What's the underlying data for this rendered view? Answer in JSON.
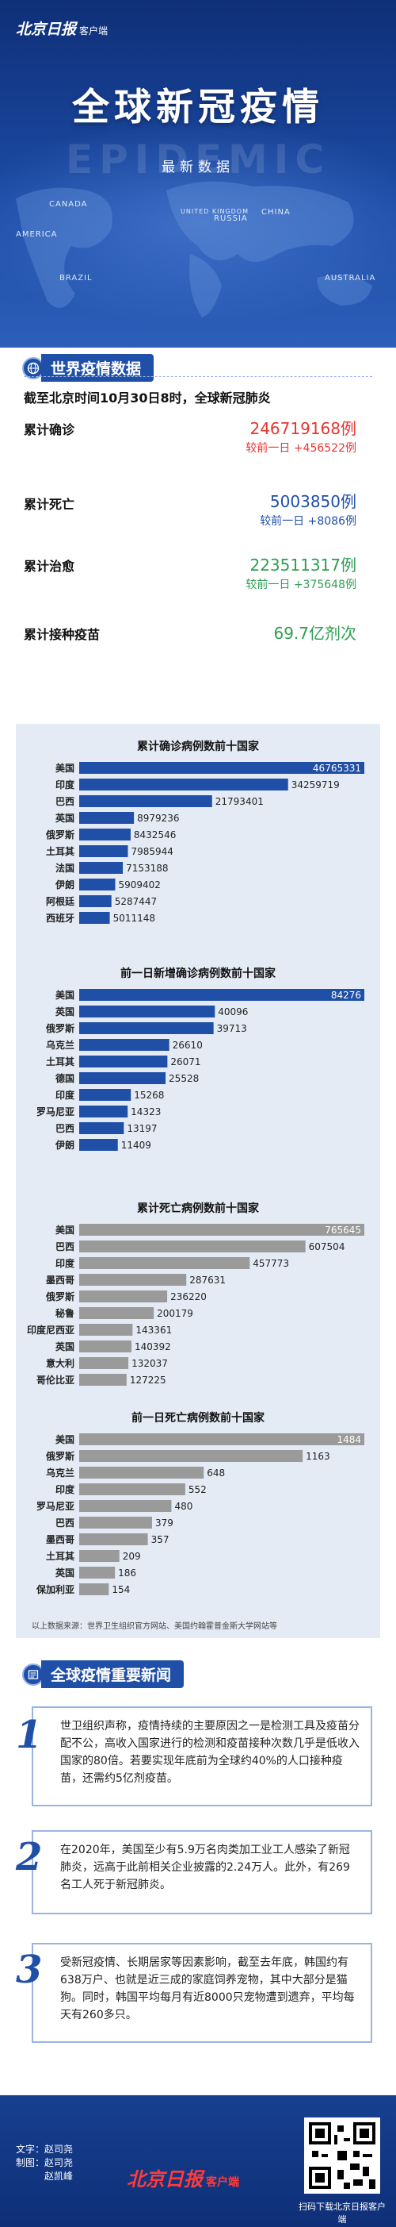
{
  "header": {
    "logo_text": "北京日报",
    "logo_suffix": "客户端",
    "title": "全球新冠疫情",
    "watermark": "EPIDEMIC",
    "subtitle": "最新数据",
    "countries": [
      "CANADA",
      "AMERICA",
      "UNITED KINGDOM",
      "RUSSIA",
      "CHINA",
      "BRAZIL",
      "AUSTRALIA"
    ]
  },
  "world": {
    "section_title": "世界疫情数据",
    "as_of": "截至北京时间10月30日8时，全球新冠肺炎",
    "stats": [
      {
        "label": "累计确诊",
        "value": "246719168例",
        "delta": "较前一日 +456522例",
        "color": "#e8352e"
      },
      {
        "label": "累计死亡",
        "value": "5003850例",
        "delta": "较前一日 +8086例",
        "color": "#1f4fa6"
      },
      {
        "label": "累计治愈",
        "value": "223511317例",
        "delta": "较前一日 +375648例",
        "color": "#2e9e52"
      },
      {
        "label": "累计接种疫苗",
        "value": "69.7亿剂次",
        "delta": "",
        "color": "#2e9e52"
      }
    ]
  },
  "chart_data": [
    {
      "type": "bar",
      "title": "累计确诊病例数前十国家",
      "categories": [
        "美国",
        "印度",
        "巴西",
        "英国",
        "俄罗斯",
        "土耳其",
        "法国",
        "伊朗",
        "阿根廷",
        "西班牙"
      ],
      "values": [
        46765331,
        34259719,
        21793401,
        8979236,
        8432546,
        7985944,
        7153188,
        5909402,
        5287447,
        5011148
      ],
      "value_labels": [
        "46765331",
        "34259719",
        "21793401",
        "8979236",
        "8432546",
        "7985944",
        "7153188",
        "5909402",
        "5287447",
        "5011148"
      ],
      "bar_color": "#1f4fa6"
    },
    {
      "type": "bar",
      "title": "前一日新增确诊病例数前十国家",
      "categories": [
        "美国",
        "英国",
        "俄罗斯",
        "乌克兰",
        "土耳其",
        "德国",
        "印度",
        "罗马尼亚",
        "巴西",
        "伊朗"
      ],
      "values": [
        84276,
        40096,
        39713,
        26610,
        26071,
        25528,
        15268,
        14323,
        13197,
        11409
      ],
      "value_labels": [
        "84276",
        "40096",
        "39713",
        "26610",
        "26071",
        "25528",
        "15268",
        "14323",
        "13197",
        "11409"
      ],
      "bar_color": "#1f4fa6"
    },
    {
      "type": "bar",
      "title": "累计死亡病例数前十国家",
      "categories": [
        "美国",
        "巴西",
        "印度",
        "墨西哥",
        "俄罗斯",
        "秘鲁",
        "印度尼西亚",
        "英国",
        "意大利",
        "哥伦比亚"
      ],
      "values": [
        765645,
        607504,
        457773,
        287631,
        236220,
        200179,
        143361,
        140392,
        132037,
        127225
      ],
      "value_labels": [
        "765645",
        "607504",
        "457773",
        "287631",
        "236220",
        "200179",
        "143361",
        "140392",
        "132037",
        "127225"
      ],
      "bar_color": "#9a9a9a"
    },
    {
      "type": "bar",
      "title": "前一日死亡病例数前十国家",
      "categories": [
        "美国",
        "俄罗斯",
        "乌克兰",
        "印度",
        "罗马尼亚",
        "巴西",
        "墨西哥",
        "土耳其",
        "英国",
        "保加利亚"
      ],
      "values": [
        1484,
        1163,
        648,
        552,
        480,
        379,
        357,
        209,
        186,
        154
      ],
      "value_labels": [
        "1484",
        "1163",
        "648",
        "552",
        "480",
        "379",
        "357",
        "209",
        "186",
        "154"
      ],
      "bar_color": "#9a9a9a"
    }
  ],
  "source": "以上数据来源：世界卫生组织官方网站、美国约翰霍普金斯大学网站等",
  "news": {
    "section_title": "全球疫情重要新闻",
    "items": [
      {
        "num": "1",
        "text": "世卫组织声称，疫情持续的主要原因之一是检测工具及疫苗分配不公，高收入国家进行的检测和疫苗接种次数几乎是低收入国家的80倍。若要实现年底前为全球约40%的人口接种疫苗，还需约5亿剂疫苗。"
      },
      {
        "num": "2",
        "text": "在2020年，美国至少有5.9万名肉类加工业工人感染了新冠肺炎，远高于此前相关企业披露的2.24万人。此外，有269名工人死于新冠肺炎。"
      },
      {
        "num": "3",
        "text": "受新冠疫情、长期居家等因素影响，截至去年底，韩国约有638万户、也就是近三成的家庭饲养宠物，其中大部分是猫狗。同时，韩国平均每月有近8000只宠物遭到遗弃，平均每天有260多只。"
      }
    ]
  },
  "footer": {
    "credits": [
      "文字：赵司尧",
      "制图：赵司尧",
      "　　　赵凯峰"
    ],
    "logo_text": "北京日报",
    "logo_suffix": "客户端",
    "qr_caption": "扫码下载北京日报客户端"
  }
}
